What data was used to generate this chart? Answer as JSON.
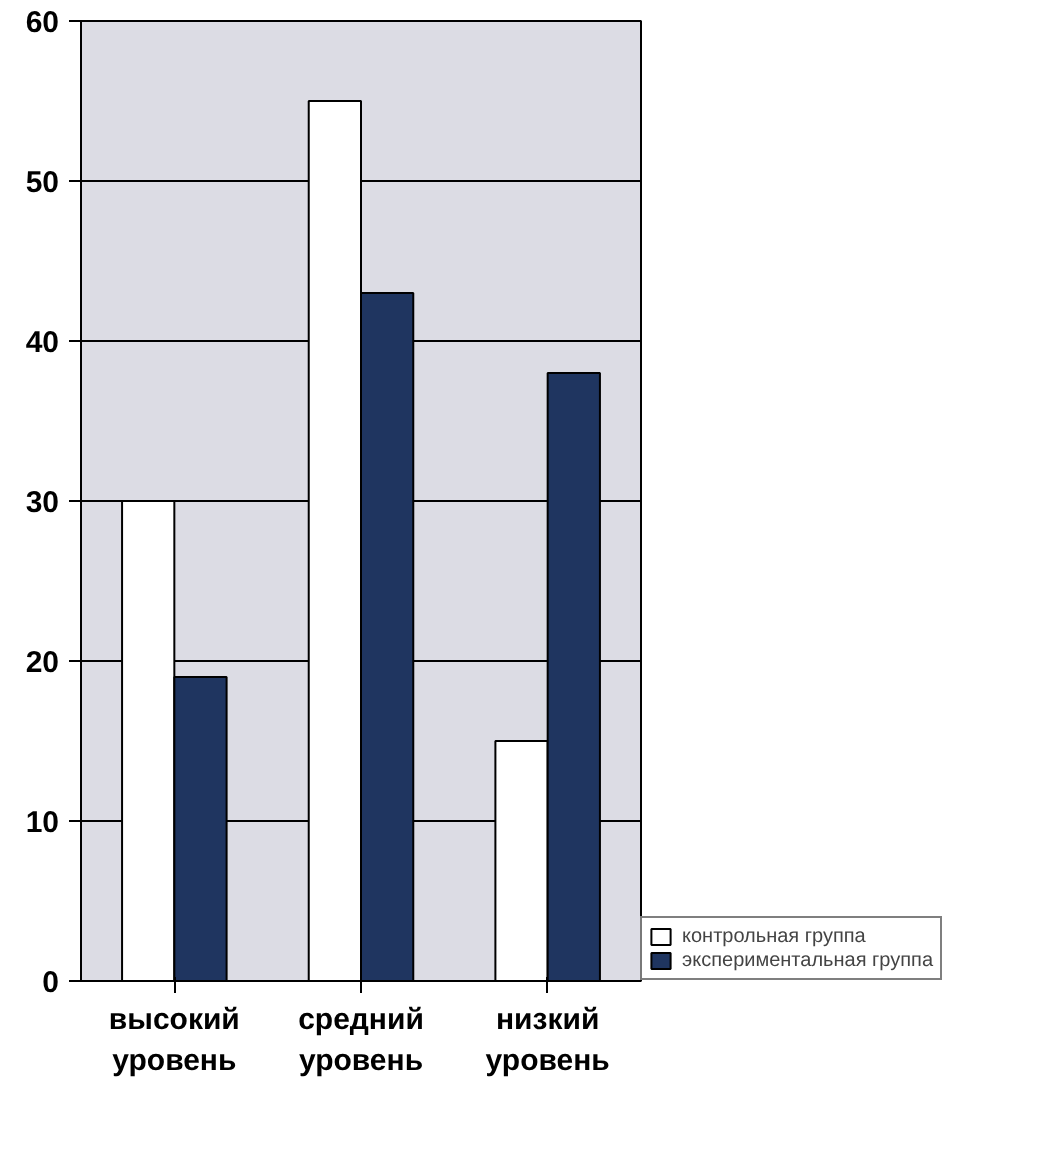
{
  "chart_data": {
    "type": "bar",
    "categories": [
      "высокий уровень",
      "средний уровень",
      "низкий уровень"
    ],
    "series": [
      {
        "name": "контрольная группа",
        "color": "#ffffff",
        "values": [
          30,
          55,
          15
        ]
      },
      {
        "name": "экспериментальная группа",
        "color": "#1f3560",
        "values": [
          19,
          43,
          38
        ]
      }
    ],
    "ylim": [
      0,
      60
    ],
    "yticks": [
      0,
      10,
      20,
      30,
      40,
      50,
      60
    ],
    "grid": "y",
    "legend": "bottom right"
  }
}
